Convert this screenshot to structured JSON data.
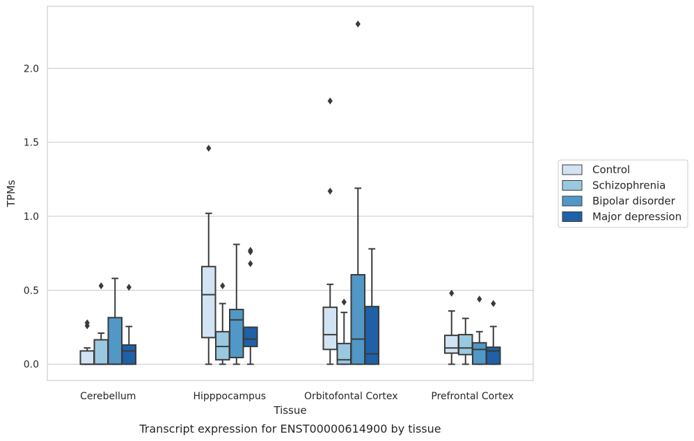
{
  "chart_data": {
    "type": "box",
    "title": "",
    "caption": "Transcript expression for ENST00000614900 by tissue",
    "xlabel": "Tissue",
    "ylabel": "TPMs",
    "ylim": [
      -0.11,
      2.42
    ],
    "yticks": [
      0.0,
      0.5,
      1.0,
      1.5,
      2.0
    ],
    "ytick_labels": [
      "0.0",
      "0.5",
      "1.0",
      "1.5",
      "2.0"
    ],
    "grid": "horizontal",
    "categories": [
      "Cerebellum",
      "Hipppocampus",
      "Orbitofontal Cortex",
      "Prefrontal Cortex"
    ],
    "legend": {
      "placement": "right",
      "entries": [
        "Control",
        "Schizophrenia",
        "Bipolar disorder",
        "Major depression"
      ]
    },
    "series": [
      {
        "name": "Control",
        "color": "#d2e3f3",
        "boxes": [
          {
            "whisker_low": 0.0,
            "q1": 0.0,
            "median": 0.0,
            "q3": 0.09,
            "whisker_high": 0.11,
            "outliers": [
              0.26,
              0.28
            ]
          },
          {
            "whisker_low": 0.0,
            "q1": 0.18,
            "median": 0.47,
            "q3": 0.66,
            "whisker_high": 1.02,
            "outliers": [
              1.46
            ]
          },
          {
            "whisker_low": 0.0,
            "q1": 0.1,
            "median": 0.2,
            "q3": 0.385,
            "whisker_high": 0.54,
            "outliers": [
              1.17,
              1.78
            ]
          },
          {
            "whisker_low": 0.0,
            "q1": 0.075,
            "median": 0.11,
            "q3": 0.195,
            "whisker_high": 0.36,
            "outliers": [
              0.48
            ]
          }
        ]
      },
      {
        "name": "Schizophrenia",
        "color": "#9ac8e0",
        "boxes": [
          {
            "whisker_low": 0.0,
            "q1": 0.0,
            "median": 0.0,
            "q3": 0.165,
            "whisker_high": 0.21,
            "outliers": [
              0.53
            ]
          },
          {
            "whisker_low": 0.0,
            "q1": 0.03,
            "median": 0.12,
            "q3": 0.22,
            "whisker_high": 0.41,
            "outliers": [
              0.53
            ]
          },
          {
            "whisker_low": 0.0,
            "q1": 0.0,
            "median": 0.03,
            "q3": 0.14,
            "whisker_high": 0.35,
            "outliers": [
              0.42
            ]
          },
          {
            "whisker_low": 0.0,
            "q1": 0.065,
            "median": 0.11,
            "q3": 0.2,
            "whisker_high": 0.31,
            "outliers": []
          }
        ]
      },
      {
        "name": "Bipolar disorder",
        "color": "#5198c6",
        "boxes": [
          {
            "whisker_low": 0.0,
            "q1": 0.0,
            "median": 0.0,
            "q3": 0.315,
            "whisker_high": 0.58,
            "outliers": []
          },
          {
            "whisker_low": 0.0,
            "q1": 0.045,
            "median": 0.3,
            "q3": 0.37,
            "whisker_high": 0.81,
            "outliers": []
          },
          {
            "whisker_low": 0.0,
            "q1": 0.0,
            "median": 0.17,
            "q3": 0.605,
            "whisker_high": 1.19,
            "outliers": [
              2.3
            ]
          },
          {
            "whisker_low": 0.0,
            "q1": 0.0,
            "median": 0.1,
            "q3": 0.145,
            "whisker_high": 0.22,
            "outliers": [
              0.44
            ]
          }
        ]
      },
      {
        "name": "Major depression",
        "color": "#2060a7",
        "boxes": [
          {
            "whisker_low": 0.0,
            "q1": 0.0,
            "median": 0.09,
            "q3": 0.13,
            "whisker_high": 0.255,
            "outliers": [
              0.52
            ]
          },
          {
            "whisker_low": 0.0,
            "q1": 0.12,
            "median": 0.17,
            "q3": 0.25,
            "whisker_high": 0.25,
            "outliers": [
              0.68,
              0.76,
              0.77
            ]
          },
          {
            "whisker_low": 0.0,
            "q1": 0.0,
            "median": 0.07,
            "q3": 0.39,
            "whisker_high": 0.78,
            "outliers": []
          },
          {
            "whisker_low": 0.0,
            "q1": 0.0,
            "median": 0.09,
            "q3": 0.115,
            "whisker_high": 0.255,
            "outliers": [
              0.41
            ]
          }
        ]
      }
    ]
  }
}
